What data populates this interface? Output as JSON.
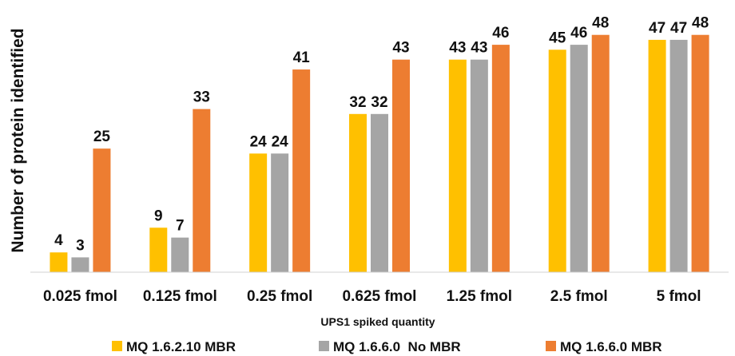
{
  "chart_data": {
    "type": "bar",
    "title": "",
    "xlabel": "UPS1 spiked quantity",
    "ylabel": "Number of protein identified",
    "categories": [
      "0.025 fmol",
      "0.125 fmol",
      "0.25 fmol",
      "0.625 fmol",
      "1.25 fmol",
      "2.5 fmol",
      "5 fmol"
    ],
    "series": [
      {
        "name": "MQ 1.6.2.10 MBR",
        "color": "#FFC000",
        "values": [
          4,
          9,
          24,
          32,
          43,
          45,
          47
        ]
      },
      {
        "name": "MQ 1.6.6.0  No MBR",
        "color": "#A5A5A5",
        "values": [
          3,
          7,
          24,
          32,
          43,
          46,
          47
        ]
      },
      {
        "name": "MQ 1.6.6.0 MBR",
        "color": "#ED7D31",
        "values": [
          25,
          33,
          41,
          43,
          46,
          48,
          48
        ]
      }
    ],
    "ylim": [
      0,
      50
    ],
    "grid": false,
    "legend_position": "bottom"
  }
}
